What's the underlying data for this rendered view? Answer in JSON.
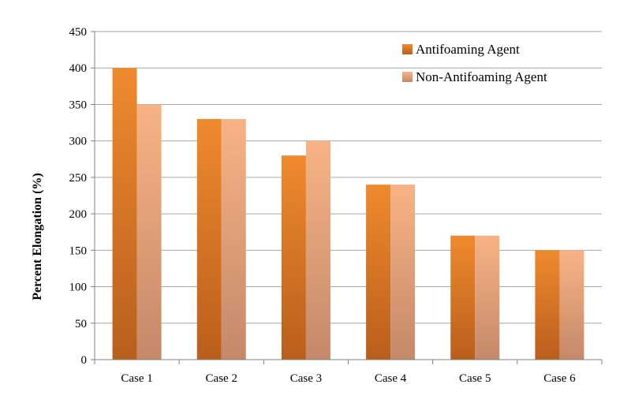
{
  "chart_data": {
    "type": "bar",
    "title": "",
    "xlabel": "",
    "ylabel": "Percent Elongation  (%)",
    "ylim": [
      0,
      450
    ],
    "yticks": [
      0,
      50,
      100,
      150,
      200,
      250,
      300,
      350,
      400,
      450
    ],
    "grid": true,
    "legend_position": "top-right",
    "categories": [
      "Case 1",
      "Case 2",
      "Case 3",
      "Case 4",
      "Case 5",
      "Case 6"
    ],
    "series": [
      {
        "name": "Antifoaming Agent",
        "values": [
          400,
          330,
          280,
          240,
          170,
          150
        ],
        "color_top": "#ef8a2e",
        "color_bottom": "#b95e1c"
      },
      {
        "name": "Non-Antifoaming Agent",
        "values": [
          350,
          330,
          300,
          240,
          170,
          150
        ],
        "color_top": "#f7b384",
        "color_bottom": "#c4896a"
      }
    ]
  }
}
